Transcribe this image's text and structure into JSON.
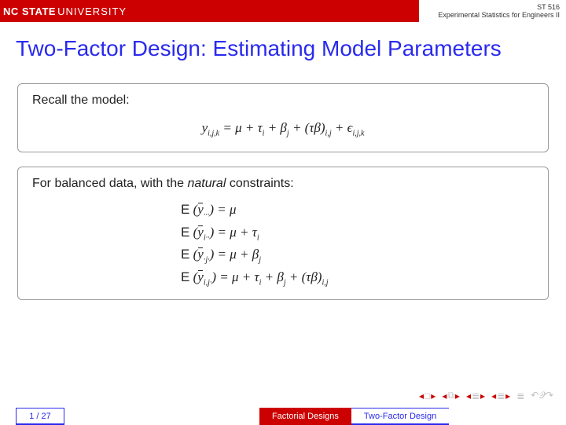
{
  "header": {
    "brand_bg": "#cc0000",
    "logo_nc": "NC STATE",
    "logo_univ": "UNIVERSITY",
    "course_code": "ST 516",
    "course_name": "Experimental Statistics for Engineers II"
  },
  "title": "Two-Factor Design: Estimating Model Parameters",
  "title_color": "#2a2aee",
  "box1": {
    "label": "Recall the model:",
    "equation_html": "y<span class='sub'>i,j,k</span> = μ + τ<span class='sub'>i</span> + β<span class='sub'>j</span> + (τβ)<span class='sub'>i,j</span> + ϵ<span class='sub'>i,j,k</span>"
  },
  "box2": {
    "label_html": "For balanced data, with the <em class='it'>natural</em> constraints:",
    "rows": [
      "<span class='rm'>E</span> (<span class='bar'>y</span><span class='sub'>···</span>) = μ",
      "<span class='rm'>E</span> (<span class='bar'>y</span><span class='sub'>i··</span>) = μ + τ<span class='sub'>i</span>",
      "<span class='rm'>E</span> (<span class='bar'>y</span><span class='sub'>·j·</span>) = μ + β<span class='sub'>j</span>",
      "<span class='rm'>E</span> (<span class='bar'>y</span><span class='sub'>i,j·</span>) = μ + τ<span class='sub'>i</span> + β<span class='sub'>j</span> + (τβ)<span class='sub'>i,j</span>"
    ]
  },
  "footer": {
    "page": "1 / 27",
    "tab1": "Factorial Designs",
    "tab2": "Two-Factor Design",
    "tab1_bg": "#cc0000",
    "tab2_color": "#2a2aee"
  },
  "nav_icons": {
    "color_muted": "#bfbfbf",
    "color_accent": "#cc0000"
  }
}
